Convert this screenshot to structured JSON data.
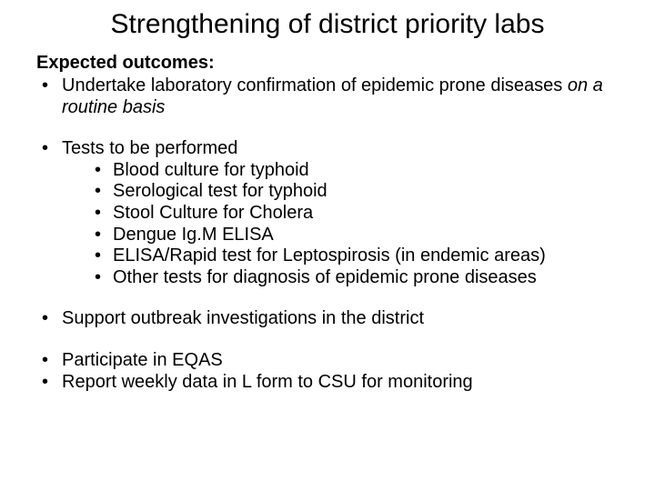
{
  "title": "Strengthening of district priority labs",
  "subheading": "Expected outcomes:",
  "bullets": {
    "b1_pre": "Undertake laboratory confirmation of epidemic prone diseases ",
    "b1_italic": "on a routine basis",
    "b2": "Tests to be performed",
    "b2_sub": {
      "s1": "Blood culture for typhoid",
      "s2": "Serological test for typhoid",
      "s3": "Stool Culture for Cholera",
      "s4": "Dengue Ig.M ELISA",
      "s5": "ELISA/Rapid test for Leptospirosis (in endemic areas)",
      "s6": "Other tests for diagnosis of epidemic prone diseases"
    },
    "b3": "Support outbreak investigations in the district",
    "b4": "Participate in EQAS",
    "b5": "Report weekly data in L form to CSU for monitoring"
  },
  "style": {
    "background_color": "#ffffff",
    "text_color": "#000000",
    "title_fontsize": 30,
    "body_fontsize": 20,
    "font_family": "Arial"
  }
}
